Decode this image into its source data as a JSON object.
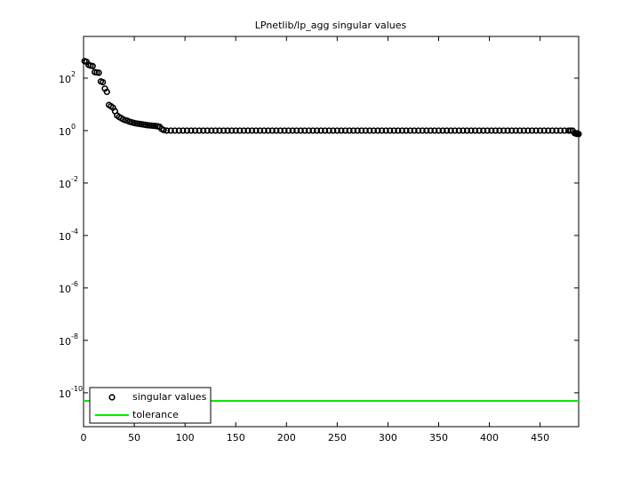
{
  "chart_data": {
    "type": "scatter",
    "title": "LPnetlib/lp_agg singular values",
    "log_y": true,
    "legend": "lower left",
    "xlim": [
      0,
      488
    ],
    "xticks": [
      0,
      50,
      100,
      150,
      200,
      250,
      300,
      350,
      400,
      450
    ],
    "ylim": [
      5.1e-12,
      3900
    ],
    "yticks": [
      {
        "value": 1e-10,
        "label": "10",
        "exponent": "-10"
      },
      {
        "value": 1e-08,
        "label": "10",
        "exponent": "-8"
      },
      {
        "value": 1e-06,
        "label": "10",
        "exponent": "-6"
      },
      {
        "value": 0.0001,
        "label": "10",
        "exponent": "-4"
      },
      {
        "value": 0.01,
        "label": "10",
        "exponent": "-2"
      },
      {
        "value": 1,
        "label": "10",
        "exponent": "0"
      },
      {
        "value": 100,
        "label": "10",
        "exponent": "2"
      }
    ],
    "series": [
      {
        "name": "singular values",
        "type": "scatter",
        "color": "#000000",
        "x": [
          1,
          3,
          5,
          7,
          9,
          11,
          13,
          15,
          17,
          19,
          21,
          23,
          25,
          27,
          29,
          31,
          33,
          35,
          37,
          39,
          41,
          43,
          45,
          47,
          49,
          51,
          53,
          55,
          57,
          59,
          61,
          63,
          65,
          67,
          69,
          71,
          73,
          75,
          77,
          79,
          82,
          86,
          90,
          94,
          98,
          102,
          106,
          110,
          114,
          118,
          122,
          126,
          130,
          134,
          138,
          142,
          146,
          150,
          154,
          158,
          162,
          166,
          170,
          174,
          178,
          182,
          186,
          190,
          194,
          198,
          202,
          206,
          210,
          214,
          218,
          222,
          226,
          230,
          234,
          238,
          242,
          246,
          250,
          254,
          258,
          262,
          266,
          270,
          274,
          278,
          282,
          286,
          290,
          294,
          298,
          302,
          306,
          310,
          314,
          318,
          322,
          326,
          330,
          334,
          338,
          342,
          346,
          350,
          354,
          358,
          362,
          366,
          370,
          374,
          378,
          382,
          386,
          390,
          394,
          398,
          402,
          406,
          410,
          414,
          418,
          422,
          426,
          430,
          434,
          438,
          442,
          446,
          450,
          454,
          458,
          462,
          466,
          470,
          474,
          478,
          480,
          482,
          484,
          485,
          486,
          487,
          488
        ],
        "values": [
          450,
          420,
          320,
          300,
          290,
          170,
          165,
          160,
          75,
          70,
          40,
          30,
          9.5,
          8.5,
          7.5,
          5.5,
          3.8,
          3.3,
          3.0,
          2.7,
          2.5,
          2.4,
          2.2,
          2.1,
          2.0,
          1.9,
          1.85,
          1.8,
          1.75,
          1.7,
          1.65,
          1.6,
          1.58,
          1.55,
          1.52,
          1.5,
          1.45,
          1.4,
          1.15,
          1.05,
          1,
          1,
          1,
          1,
          1,
          1,
          1,
          1,
          1,
          1,
          1,
          1,
          1,
          1,
          1,
          1,
          1,
          1,
          1,
          1,
          1,
          1,
          1,
          1,
          1,
          1,
          1,
          1,
          1,
          1,
          1,
          1,
          1,
          1,
          1,
          1,
          1,
          1,
          1,
          1,
          1,
          1,
          1,
          1,
          1,
          1,
          1,
          1,
          1,
          1,
          1,
          1,
          1,
          1,
          1,
          1,
          1,
          1,
          1,
          1,
          1,
          1,
          1,
          1,
          1,
          1,
          1,
          1,
          1,
          1,
          1,
          1,
          1,
          1,
          1,
          1,
          1,
          1,
          1,
          1,
          1,
          1,
          1,
          1,
          1,
          1,
          1,
          1,
          1,
          1,
          1,
          1,
          1,
          1,
          1,
          1,
          1,
          1,
          1,
          1,
          1,
          1,
          0.8,
          0.78,
          0.75,
          0.75,
          0.74
        ]
      },
      {
        "name": "tolerance",
        "type": "line",
        "color": "#00ee00",
        "x": [
          0,
          488
        ],
        "values": [
          4.9e-11,
          4.9e-11
        ]
      }
    ]
  }
}
